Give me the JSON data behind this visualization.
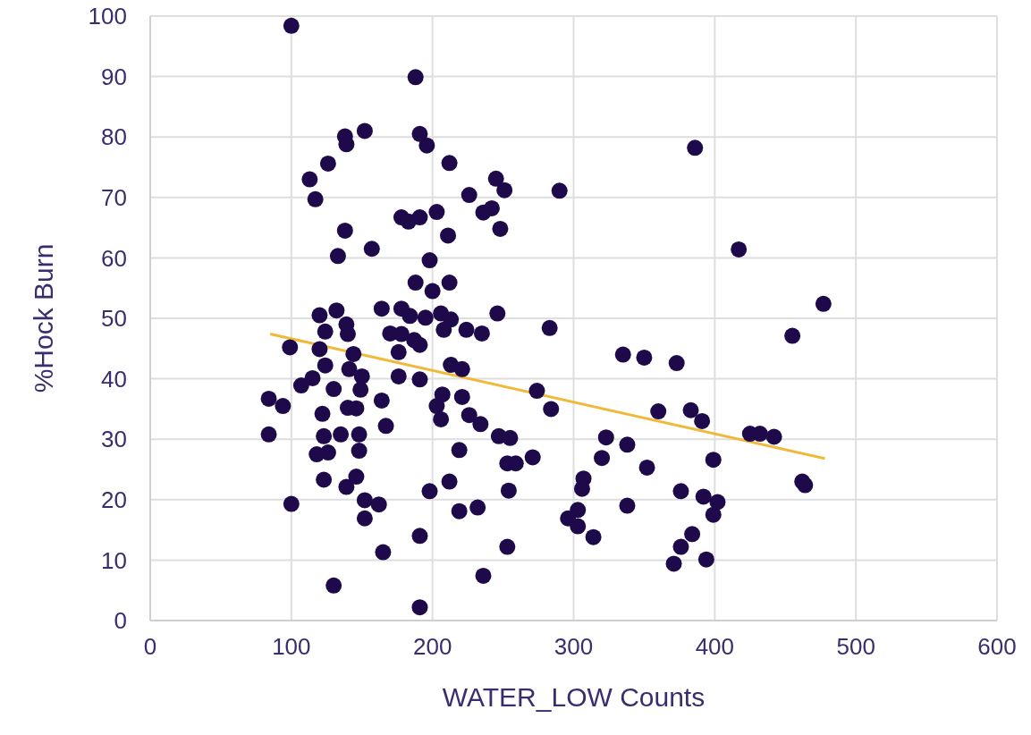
{
  "chart_data": {
    "type": "scatter",
    "xlabel": "WATER_LOW Counts",
    "ylabel": "%Hock Burn",
    "xlim": [
      0,
      600
    ],
    "xticks": [
      0,
      100,
      200,
      300,
      400,
      500,
      600
    ],
    "ylim": [
      0,
      100
    ],
    "yticks": [
      0,
      10,
      20,
      30,
      40,
      50,
      60,
      70,
      80,
      90,
      100
    ],
    "grid": true,
    "marker": "circle",
    "series": [
      {
        "color": "#1e0a4a",
        "x": [
          100,
          188,
          138,
          139,
          152,
          191,
          196,
          212,
          126,
          113,
          117,
          226,
          245,
          251,
          236,
          242,
          248,
          178,
          183,
          191,
          203,
          211,
          138,
          133,
          157,
          198,
          188,
          200,
          212,
          290,
          386,
          417,
          477,
          455,
          99,
          84,
          94,
          84,
          100,
          130,
          191,
          165,
          191,
          123,
          139,
          146,
          152,
          162,
          152,
          198,
          212,
          219,
          232,
          236,
          253,
          254,
          253,
          219,
          123,
          135,
          148,
          148,
          118,
          126,
          122,
          140,
          146,
          130,
          107,
          115,
          124,
          141,
          150,
          149,
          164,
          167,
          120,
          132,
          139,
          140,
          124,
          120,
          144,
          164,
          178,
          184,
          170,
          178,
          187,
          191,
          176,
          176,
          191,
          195,
          206,
          213,
          208,
          224,
          235,
          246,
          213,
          221,
          207,
          203,
          206,
          221,
          226,
          234,
          247,
          283,
          274,
          284,
          360,
          373,
          383,
          391,
          399,
          323,
          338,
          320,
          352,
          307,
          306,
          338,
          376,
          392,
          402,
          399,
          296,
          303,
          303,
          314,
          384,
          376,
          371,
          394,
          425,
          432,
          442,
          462,
          464,
          259,
          271,
          255,
          335,
          350
        ],
        "values": [
          98.4,
          89.9,
          80.1,
          78.8,
          81,
          80.5,
          78.6,
          75.7,
          75.6,
          73,
          69.7,
          70.4,
          73.1,
          71.2,
          67.5,
          68.2,
          64.8,
          66.7,
          66,
          66.7,
          67.6,
          63.7,
          64.5,
          60.3,
          61.5,
          59.6,
          55.9,
          54.5,
          55.9,
          71.1,
          78.2,
          61.4,
          52.4,
          47.1,
          45.2,
          36.7,
          35.5,
          30.8,
          19.3,
          5.8,
          2.2,
          11.3,
          14,
          23.3,
          22.1,
          23.8,
          19.9,
          19.2,
          16.9,
          21.4,
          23,
          18.1,
          18.7,
          7.4,
          12.2,
          21.5,
          26,
          28.2,
          30.5,
          30.8,
          30.8,
          28.1,
          27.5,
          27.8,
          34.2,
          35.2,
          35.1,
          38.3,
          38.9,
          40.1,
          42.2,
          41.6,
          40.4,
          38.2,
          36.4,
          32.2,
          50.5,
          51.3,
          49,
          47.4,
          47.8,
          44.9,
          44.1,
          51.6,
          51.6,
          50.4,
          47.5,
          47.4,
          46.4,
          45.6,
          44.4,
          40.4,
          39.9,
          50.1,
          50.8,
          49.8,
          48.1,
          48.1,
          47.5,
          50.8,
          42.3,
          41.6,
          37.4,
          35.5,
          33.3,
          37,
          34,
          32.5,
          30.5,
          48.4,
          38,
          35,
          34.6,
          42.6,
          34.8,
          33,
          26.6,
          30.3,
          29.1,
          26.9,
          25.3,
          23.5,
          21.8,
          19,
          21.4,
          20.5,
          19.6,
          17.5,
          16.9,
          18.3,
          15.6,
          13.8,
          14.3,
          12.2,
          9.4,
          10.1,
          30.9,
          30.9,
          30.4,
          23,
          22.4,
          26,
          27,
          30.2,
          44,
          43.5
        ]
      },
      {
        "type": "line",
        "color": "#f0b93a",
        "marker": "none",
        "x": [
          85,
          478
        ],
        "values": [
          47.4,
          26.8
        ]
      }
    ]
  }
}
